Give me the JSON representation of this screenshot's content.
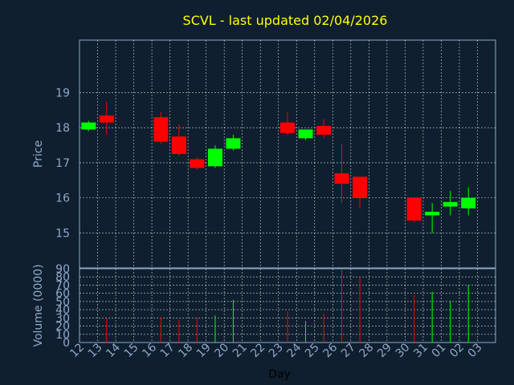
{
  "chart_data": {
    "type": "candlestick",
    "title": "SCVL - last updated 02/04/2026",
    "ylabel_price": "Price",
    "ylabel_volume": "Volume (0000)",
    "xlabel": "Day",
    "price_ylim": [
      14,
      20.5
    ],
    "price_yticks": [
      15,
      16,
      17,
      18,
      19
    ],
    "volume_ylim": [
      0,
      90
    ],
    "volume_yticks": [
      0,
      10,
      20,
      30,
      40,
      50,
      60,
      70,
      80,
      90
    ],
    "x_tick_labels": [
      "12",
      "13",
      "14",
      "15",
      "16",
      "17",
      "18",
      "19",
      "20",
      "21",
      "22",
      "23",
      "24",
      "25",
      "26",
      "27",
      "28",
      "29",
      "30",
      "31",
      "01",
      "02",
      "03"
    ],
    "grid": true,
    "colors": {
      "up": "#00ff00",
      "down": "#ff0000",
      "background": "#0f1f2f",
      "grid": "#ffffff",
      "axis_text": "#8fa8c8",
      "title": "#ffff00"
    },
    "candles": [
      {
        "day": "12",
        "open": 17.95,
        "close": 18.15,
        "high": 18.2,
        "low": 17.9,
        "volume": 0
      },
      {
        "day": "13",
        "open": 18.35,
        "close": 18.15,
        "high": 18.75,
        "low": 17.8,
        "volume": 30
      },
      {
        "day": "16",
        "open": 18.3,
        "close": 17.6,
        "high": 18.45,
        "low": 17.55,
        "volume": 31
      },
      {
        "day": "17",
        "open": 17.75,
        "close": 17.25,
        "high": 18.1,
        "low": 17.2,
        "volume": 28
      },
      {
        "day": "18",
        "open": 17.1,
        "close": 16.85,
        "high": 17.15,
        "low": 16.8,
        "volume": 30
      },
      {
        "day": "19",
        "open": 16.9,
        "close": 17.4,
        "high": 17.5,
        "low": 16.85,
        "volume": 33
      },
      {
        "day": "20",
        "open": 17.4,
        "close": 17.7,
        "high": 17.8,
        "low": 17.35,
        "volume": 52
      },
      {
        "day": "23",
        "open": 18.15,
        "close": 17.85,
        "high": 18.45,
        "low": 17.8,
        "volume": 38
      },
      {
        "day": "24",
        "open": 17.7,
        "close": 17.95,
        "high": 17.95,
        "low": 17.65,
        "volume": 26
      },
      {
        "day": "25",
        "open": 18.05,
        "close": 17.8,
        "high": 18.25,
        "low": 17.7,
        "volume": 35
      },
      {
        "day": "26",
        "open": 16.7,
        "close": 16.4,
        "high": 17.55,
        "low": 15.85,
        "volume": 90
      },
      {
        "day": "27",
        "open": 16.6,
        "close": 16.0,
        "high": 16.6,
        "low": 15.7,
        "volume": 80
      },
      {
        "day": "30",
        "open": 16.0,
        "close": 15.35,
        "high": 16.0,
        "low": 15.3,
        "volume": 58
      },
      {
        "day": "31",
        "open": 15.5,
        "close": 15.6,
        "high": 15.85,
        "low": 15.0,
        "volume": 62
      },
      {
        "day": "01",
        "open": 15.75,
        "close": 15.88,
        "high": 16.2,
        "low": 15.5,
        "volume": 51
      },
      {
        "day": "02",
        "open": 15.7,
        "close": 16.0,
        "high": 16.3,
        "low": 15.5,
        "volume": 70
      }
    ]
  }
}
